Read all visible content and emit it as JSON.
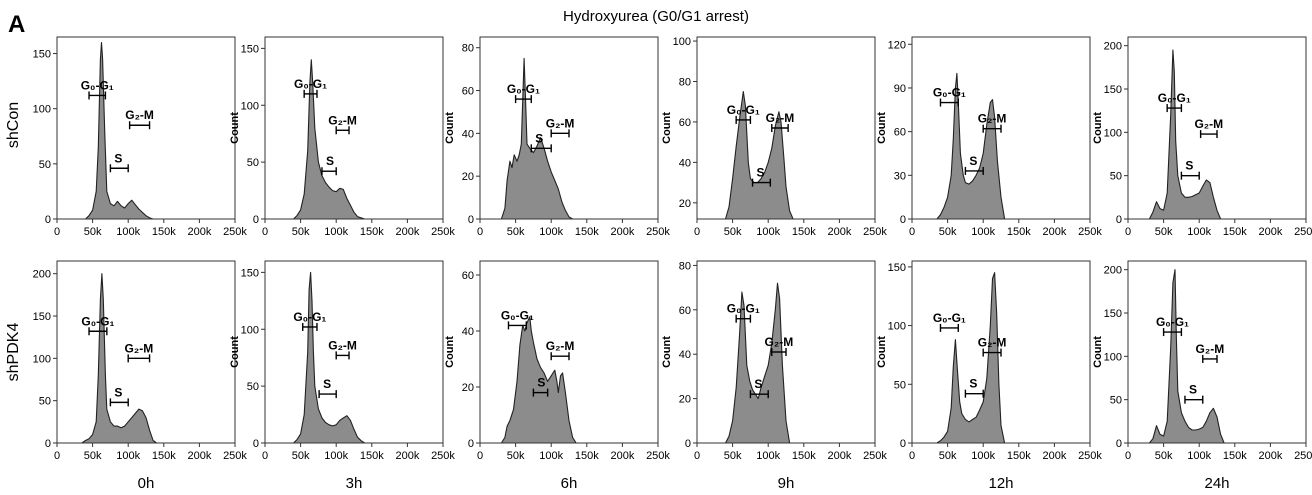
{
  "panel_letter": "A",
  "title": "Hydroxyurea (G0/G1 arrest)",
  "row_labels": [
    "shCon",
    "shPDK4"
  ],
  "time_labels": [
    "0h",
    "3h",
    "6h",
    "9h",
    "12h",
    "24h"
  ],
  "colors": {
    "fill": "#8c8c8c",
    "outline": "#222222",
    "frame": "#333333"
  },
  "chart_data": [
    {
      "type": "area",
      "row": "shCon",
      "time": "0h",
      "ylabel": "",
      "ylim": [
        0,
        165
      ],
      "yticks": [
        0,
        50,
        100,
        150
      ],
      "xlim": [
        0,
        250000
      ],
      "xticks": [
        "0",
        "50k",
        "100k",
        "150k",
        "200k",
        "250k"
      ],
      "x": [
        40000,
        45000,
        50000,
        55000,
        58000,
        61000,
        62500,
        64000,
        67000,
        70000,
        75000,
        80000,
        85000,
        90000,
        95000,
        100000,
        105000,
        110000,
        115000,
        120000,
        125000,
        130000,
        135000,
        140000
      ],
      "y": [
        0,
        3,
        8,
        25,
        65,
        145,
        160,
        145,
        80,
        25,
        14,
        12,
        16,
        12,
        10,
        14,
        17,
        13,
        9,
        6,
        3,
        1,
        0,
        0
      ],
      "gates": [
        {
          "label": "G₀-G₁",
          "x": [
            45000,
            68000
          ],
          "y": 112
        },
        {
          "label": "S",
          "x": [
            75000,
            100000
          ],
          "y": 46
        },
        {
          "label": "G₂-M",
          "x": [
            102000,
            130000
          ],
          "y": 85
        }
      ]
    },
    {
      "type": "area",
      "row": "shCon",
      "time": "3h",
      "ylabel": "Count",
      "ylim": [
        0,
        160
      ],
      "yticks": [
        0,
        50,
        100,
        150
      ],
      "xlim": [
        0,
        250000
      ],
      "xticks": [
        "0",
        "50k",
        "100k",
        "150k",
        "200k",
        "250k"
      ],
      "x": [
        40000,
        45000,
        50000,
        55000,
        60000,
        63000,
        65000,
        67000,
        70000,
        75000,
        80000,
        85000,
        90000,
        95000,
        100000,
        105000,
        110000,
        115000,
        120000,
        125000,
        130000,
        140000
      ],
      "y": [
        0,
        3,
        8,
        22,
        60,
        120,
        140,
        120,
        80,
        50,
        38,
        32,
        28,
        25,
        24,
        27,
        26,
        18,
        12,
        6,
        2,
        0
      ],
      "gates": [
        {
          "label": "G₀-G₁",
          "x": [
            55000,
            73000
          ],
          "y": 110
        },
        {
          "label": "S",
          "x": [
            80000,
            100000
          ],
          "y": 42
        },
        {
          "label": "G₂-M",
          "x": [
            100000,
            118000
          ],
          "y": 78
        }
      ]
    },
    {
      "type": "area",
      "row": "shCon",
      "time": "6h",
      "ylabel": "Count",
      "ylim": [
        0,
        85
      ],
      "yticks": [
        0,
        20,
        40,
        60,
        80
      ],
      "xlim": [
        0,
        250000
      ],
      "xticks": [
        "0",
        "50k",
        "100k",
        "150k",
        "200k",
        "250k"
      ],
      "x": [
        30000,
        35000,
        38000,
        42000,
        45000,
        48000,
        52000,
        55000,
        58000,
        60000,
        62000,
        64000,
        66000,
        70000,
        75000,
        80000,
        85000,
        90000,
        95000,
        100000,
        105000,
        110000,
        115000,
        120000,
        125000,
        130000
      ],
      "y": [
        0,
        5,
        18,
        27,
        24,
        30,
        27,
        30,
        35,
        55,
        75,
        55,
        35,
        33,
        31,
        34,
        38,
        33,
        27,
        22,
        18,
        14,
        8,
        4,
        1,
        0
      ],
      "gates": [
        {
          "label": "G₀-G₁",
          "x": [
            50000,
            72000
          ],
          "y": 56
        },
        {
          "label": "S",
          "x": [
            72000,
            100000
          ],
          "y": 33
        },
        {
          "label": "G₂-M",
          "x": [
            100000,
            125000
          ],
          "y": 40
        }
      ]
    },
    {
      "type": "area",
      "row": "shCon",
      "time": "9h",
      "ylabel": "Count",
      "ylim": [
        12,
        102
      ],
      "yticks": [
        20,
        40,
        60,
        80,
        100
      ],
      "xlim": [
        0,
        250000
      ],
      "xticks": [
        "0",
        "50k",
        "100k",
        "150k",
        "200k",
        "250k"
      ],
      "x": [
        40000,
        45000,
        50000,
        55000,
        60000,
        65000,
        68000,
        72000,
        75000,
        80000,
        85000,
        90000,
        95000,
        100000,
        105000,
        110000,
        115000,
        118000,
        122000,
        125000,
        130000,
        135000
      ],
      "y": [
        12,
        18,
        32,
        48,
        62,
        75,
        68,
        40,
        32,
        30,
        30,
        32,
        35,
        40,
        47,
        58,
        65,
        60,
        42,
        28,
        16,
        12
      ],
      "gates": [
        {
          "label": "G₀-G₁",
          "x": [
            55000,
            75000
          ],
          "y": 61
        },
        {
          "label": "S",
          "x": [
            78000,
            103000
          ],
          "y": 30
        },
        {
          "label": "G₂-M",
          "x": [
            105000,
            128000
          ],
          "y": 57
        }
      ]
    },
    {
      "type": "area",
      "row": "shCon",
      "time": "12h",
      "ylabel": "Count",
      "ylim": [
        0,
        125
      ],
      "yticks": [
        0,
        30,
        60,
        90,
        120
      ],
      "xlim": [
        0,
        250000
      ],
      "xticks": [
        "0",
        "50k",
        "100k",
        "150k",
        "200k",
        "250k"
      ],
      "x": [
        35000,
        40000,
        45000,
        50000,
        55000,
        58000,
        61000,
        63000,
        65000,
        68000,
        72000,
        75000,
        80000,
        85000,
        90000,
        95000,
        100000,
        105000,
        110000,
        113000,
        116000,
        120000,
        125000,
        130000
      ],
      "y": [
        0,
        3,
        8,
        15,
        30,
        55,
        90,
        100,
        80,
        45,
        30,
        25,
        24,
        26,
        30,
        35,
        45,
        65,
        80,
        82,
        70,
        40,
        15,
        0
      ],
      "gates": [
        {
          "label": "G₀-G₁",
          "x": [
            40000,
            65000
          ],
          "y": 80
        },
        {
          "label": "S",
          "x": [
            75000,
            100000
          ],
          "y": 33
        },
        {
          "label": "G₂-M",
          "x": [
            100000,
            125000
          ],
          "y": 62
        }
      ]
    },
    {
      "type": "area",
      "row": "shCon",
      "time": "24h",
      "ylabel": "Count",
      "ylim": [
        0,
        210
      ],
      "yticks": [
        0,
        50,
        100,
        150,
        200
      ],
      "xlim": [
        0,
        250000
      ],
      "xticks": [
        "0",
        "50k",
        "100k",
        "150k",
        "200k",
        "250k"
      ],
      "x": [
        30000,
        35000,
        40000,
        45000,
        50000,
        55000,
        60000,
        63000,
        65000,
        67000,
        70000,
        75000,
        80000,
        85000,
        90000,
        95000,
        100000,
        105000,
        110000,
        115000,
        120000,
        125000,
        130000
      ],
      "y": [
        0,
        8,
        20,
        12,
        10,
        30,
        120,
        195,
        170,
        90,
        50,
        30,
        25,
        25,
        26,
        28,
        30,
        38,
        45,
        42,
        25,
        10,
        0
      ],
      "gates": [
        {
          "label": "G₀-G₁",
          "x": [
            55000,
            75000
          ],
          "y": 128
        },
        {
          "label": "S",
          "x": [
            75000,
            100000
          ],
          "y": 50
        },
        {
          "label": "G₂-M",
          "x": [
            102000,
            125000
          ],
          "y": 98
        }
      ]
    },
    {
      "type": "area",
      "row": "shPDK4",
      "time": "0h",
      "ylabel": "",
      "ylim": [
        0,
        215
      ],
      "yticks": [
        0,
        50,
        100,
        150,
        200
      ],
      "xlim": [
        0,
        250000
      ],
      "xticks": [
        "0",
        "50k",
        "100k",
        "150k",
        "200k",
        "250k"
      ],
      "x": [
        35000,
        40000,
        45000,
        50000,
        55000,
        58000,
        61000,
        63000,
        65000,
        68000,
        70000,
        75000,
        80000,
        85000,
        90000,
        95000,
        100000,
        105000,
        110000,
        115000,
        120000,
        125000,
        130000,
        135000,
        140000
      ],
      "y": [
        0,
        3,
        5,
        10,
        25,
        80,
        170,
        200,
        170,
        80,
        40,
        25,
        20,
        20,
        18,
        20,
        25,
        30,
        35,
        40,
        38,
        30,
        15,
        3,
        0
      ],
      "gates": [
        {
          "label": "G₀-G₁",
          "x": [
            45000,
            70000
          ],
          "y": 132
        },
        {
          "label": "S",
          "x": [
            75000,
            100000
          ],
          "y": 48
        },
        {
          "label": "G₂-M",
          "x": [
            100000,
            130000
          ],
          "y": 100
        }
      ]
    },
    {
      "type": "area",
      "row": "shPDK4",
      "time": "3h",
      "ylabel": "Count",
      "ylim": [
        0,
        160
      ],
      "yticks": [
        0,
        50,
        100,
        150
      ],
      "xlim": [
        0,
        250000
      ],
      "xticks": [
        "0",
        "50k",
        "100k",
        "150k",
        "200k",
        "250k"
      ],
      "x": [
        40000,
        45000,
        50000,
        55000,
        60000,
        62000,
        64000,
        66000,
        68000,
        70000,
        75000,
        80000,
        85000,
        90000,
        95000,
        100000,
        105000,
        110000,
        115000,
        120000,
        125000,
        130000,
        135000,
        140000
      ],
      "y": [
        0,
        3,
        8,
        25,
        80,
        135,
        150,
        125,
        80,
        50,
        30,
        22,
        18,
        16,
        15,
        16,
        20,
        22,
        24,
        20,
        12,
        5,
        2,
        0
      ],
      "gates": [
        {
          "label": "G₀-G₁",
          "x": [
            53000,
            73000
          ],
          "y": 102
        },
        {
          "label": "S",
          "x": [
            76000,
            100000
          ],
          "y": 43
        },
        {
          "label": "G₂-M",
          "x": [
            100000,
            118000
          ],
          "y": 77
        }
      ]
    },
    {
      "type": "area",
      "row": "shPDK4",
      "time": "6h",
      "ylabel": "Count",
      "ylim": [
        0,
        65
      ],
      "yticks": [
        0,
        20,
        40,
        60
      ],
      "xlim": [
        0,
        250000
      ],
      "xticks": [
        "0",
        "50k",
        "100k",
        "150k",
        "200k",
        "250k"
      ],
      "x": [
        30000,
        35000,
        38000,
        42000,
        47000,
        52000,
        56000,
        60000,
        63000,
        66000,
        70000,
        72000,
        75000,
        80000,
        85000,
        90000,
        95000,
        100000,
        105000,
        108000,
        110000,
        113000,
        116000,
        120000,
        125000,
        130000,
        135000
      ],
      "y": [
        0,
        2,
        6,
        8,
        12,
        22,
        35,
        42,
        40,
        43,
        45,
        40,
        36,
        30,
        27,
        25,
        22,
        24,
        26,
        22,
        18,
        24,
        25,
        18,
        8,
        2,
        0
      ],
      "gates": [
        {
          "label": "G₀-G₁",
          "x": [
            40000,
            65000
          ],
          "y": 42
        },
        {
          "label": "S",
          "x": [
            75000,
            95000
          ],
          "y": 18
        },
        {
          "label": "G₂-M",
          "x": [
            100000,
            125000
          ],
          "y": 31
        }
      ]
    },
    {
      "type": "area",
      "row": "shPDK4",
      "time": "9h",
      "ylabel": "Count",
      "ylim": [
        0,
        82
      ],
      "yticks": [
        0,
        20,
        40,
        60,
        80
      ],
      "xlim": [
        0,
        250000
      ],
      "xticks": [
        "0",
        "50k",
        "100k",
        "150k",
        "200k",
        "250k"
      ],
      "x": [
        40000,
        45000,
        50000,
        55000,
        60000,
        63000,
        66000,
        70000,
        74000,
        78000,
        82000,
        86000,
        90000,
        95000,
        100000,
        105000,
        110000,
        113000,
        116000,
        120000,
        125000,
        130000
      ],
      "y": [
        0,
        3,
        10,
        25,
        50,
        68,
        62,
        35,
        28,
        24,
        22,
        20,
        25,
        30,
        35,
        45,
        60,
        72,
        65,
        35,
        10,
        0
      ],
      "gates": [
        {
          "label": "G₀-G₁",
          "x": [
            55000,
            75000
          ],
          "y": 56
        },
        {
          "label": "S",
          "x": [
            75000,
            100000
          ],
          "y": 22
        },
        {
          "label": "G₂-M",
          "x": [
            105000,
            125000
          ],
          "y": 41
        }
      ]
    },
    {
      "type": "area",
      "row": "shPDK4",
      "time": "12h",
      "ylabel": "Count",
      "ylim": [
        0,
        155
      ],
      "yticks": [
        0,
        50,
        100,
        150
      ],
      "xlim": [
        0,
        250000
      ],
      "xticks": [
        "0",
        "50k",
        "100k",
        "150k",
        "200k",
        "250k"
      ],
      "x": [
        35000,
        40000,
        45000,
        50000,
        55000,
        58000,
        61000,
        64000,
        67000,
        70000,
        75000,
        80000,
        85000,
        90000,
        95000,
        100000,
        105000,
        110000,
        113000,
        116000,
        119000,
        122000,
        125000,
        130000
      ],
      "y": [
        0,
        2,
        5,
        10,
        30,
        65,
        88,
        60,
        35,
        25,
        20,
        18,
        20,
        22,
        28,
        35,
        55,
        100,
        140,
        145,
        110,
        50,
        15,
        0
      ],
      "gates": [
        {
          "label": "G₀-G₁",
          "x": [
            40000,
            65000
          ],
          "y": 98
        },
        {
          "label": "S",
          "x": [
            75000,
            100000
          ],
          "y": 42
        },
        {
          "label": "G₂-M",
          "x": [
            100000,
            125000
          ],
          "y": 77
        }
      ]
    },
    {
      "type": "area",
      "row": "shPDK4",
      "time": "24h",
      "ylabel": "Count",
      "ylim": [
        0,
        210
      ],
      "yticks": [
        0,
        50,
        100,
        150,
        200
      ],
      "xlim": [
        0,
        250000
      ],
      "xticks": [
        "0",
        "50k",
        "100k",
        "150k",
        "200k",
        "250k"
      ],
      "x": [
        30000,
        35000,
        40000,
        45000,
        50000,
        55000,
        60000,
        63000,
        66000,
        68000,
        70000,
        75000,
        80000,
        85000,
        90000,
        95000,
        100000,
        105000,
        110000,
        115000,
        120000,
        125000,
        130000,
        135000
      ],
      "y": [
        0,
        5,
        20,
        10,
        8,
        25,
        110,
        185,
        200,
        120,
        60,
        35,
        25,
        18,
        15,
        15,
        16,
        18,
        25,
        35,
        40,
        30,
        10,
        0
      ],
      "gates": [
        {
          "label": "G₀-G₁",
          "x": [
            50000,
            75000
          ],
          "y": 128
        },
        {
          "label": "S",
          "x": [
            80000,
            105000
          ],
          "y": 50
        },
        {
          "label": "G₂-M",
          "x": [
            105000,
            125000
          ],
          "y": 97
        }
      ]
    }
  ]
}
